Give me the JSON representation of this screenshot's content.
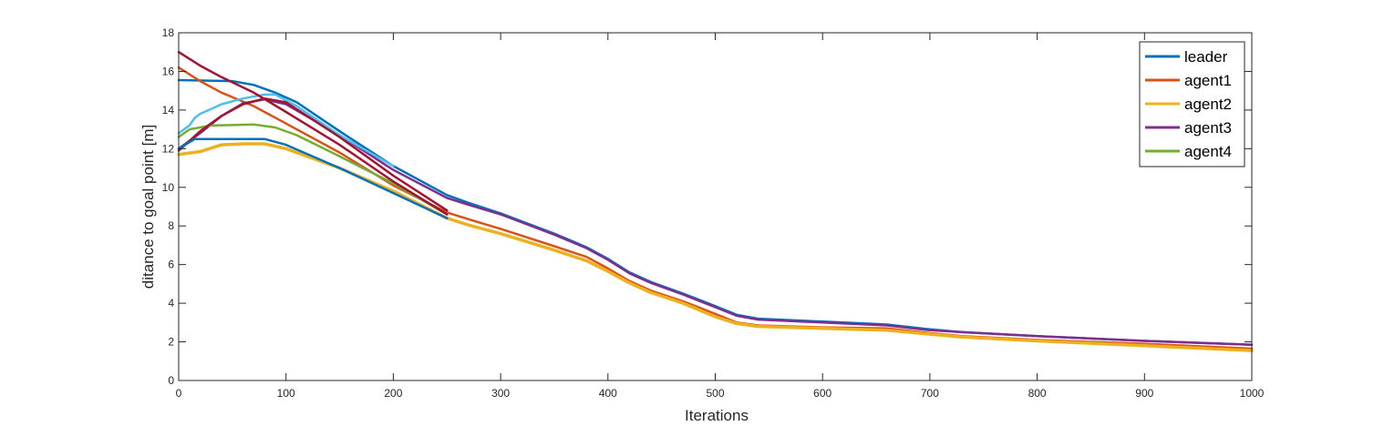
{
  "chart_data": {
    "type": "line",
    "title": "",
    "xlabel": "Iterations",
    "ylabel": "ditance to goal point [m]",
    "xlim": [
      0,
      1000
    ],
    "ylim": [
      0,
      18
    ],
    "xticks": [
      0,
      100,
      200,
      300,
      400,
      500,
      600,
      700,
      800,
      900,
      1000
    ],
    "yticks": [
      0,
      2,
      4,
      6,
      8,
      10,
      12,
      14,
      16,
      18
    ],
    "grid": false,
    "legend_position": "top-right",
    "legend": [
      "leader",
      "agent1",
      "agent2",
      "agent3",
      "agent4"
    ],
    "series": [
      {
        "name": "leader",
        "color": "#0072BD",
        "width": 2.5,
        "x": [
          0,
          50,
          70,
          90,
          110,
          150,
          200,
          250,
          270,
          300,
          350,
          380,
          400,
          420,
          440,
          470,
          500,
          520,
          540,
          600,
          660,
          700,
          730,
          800,
          900,
          1000
        ],
        "y": [
          15.55,
          15.5,
          15.3,
          14.9,
          14.4,
          12.9,
          11.1,
          9.6,
          9.2,
          8.65,
          7.6,
          6.9,
          6.3,
          5.6,
          5.1,
          4.5,
          3.85,
          3.4,
          3.2,
          3.05,
          2.9,
          2.65,
          2.5,
          2.3,
          2.05,
          1.85
        ]
      },
      {
        "name": "agent1",
        "color": "#D95319",
        "width": 2.5,
        "x": [
          0,
          20,
          40,
          70,
          100,
          150,
          200,
          250,
          270,
          300,
          350,
          380,
          400,
          420,
          440,
          470,
          500,
          520,
          540,
          600,
          660,
          700,
          730,
          800,
          900,
          1000
        ],
        "y": [
          16.2,
          15.5,
          14.9,
          14.2,
          13.3,
          11.8,
          10.1,
          8.7,
          8.35,
          7.85,
          6.95,
          6.4,
          5.8,
          5.15,
          4.65,
          4.1,
          3.45,
          3.0,
          2.85,
          2.75,
          2.7,
          2.45,
          2.3,
          2.1,
          1.9,
          1.65
        ]
      },
      {
        "name": "agent2",
        "color": "#EDB120",
        "width": 3.5,
        "x": [
          0,
          20,
          40,
          60,
          80,
          100,
          150,
          200,
          250,
          270,
          300,
          350,
          380,
          400,
          420,
          440,
          470,
          500,
          520,
          540,
          600,
          660,
          700,
          730,
          800,
          900,
          1000
        ],
        "y": [
          11.7,
          11.85,
          12.2,
          12.25,
          12.25,
          12.0,
          11.0,
          9.8,
          8.4,
          8.05,
          7.6,
          6.75,
          6.2,
          5.65,
          5.05,
          4.55,
          4.0,
          3.3,
          2.95,
          2.8,
          2.7,
          2.6,
          2.4,
          2.25,
          2.05,
          1.8,
          1.55
        ]
      },
      {
        "name": "agent3",
        "color": "#7E2F8E",
        "width": 2.5,
        "x": [
          0,
          20,
          40,
          60,
          80,
          100,
          150,
          200,
          250,
          270,
          300,
          350,
          380,
          400,
          420,
          440,
          470,
          500,
          520,
          540,
          600,
          660,
          700,
          730,
          800,
          900,
          1000
        ],
        "y": [
          12.0,
          12.8,
          13.7,
          14.35,
          14.55,
          14.3,
          12.7,
          10.9,
          9.45,
          9.1,
          8.6,
          7.55,
          6.85,
          6.25,
          5.55,
          5.05,
          4.45,
          3.8,
          3.35,
          3.15,
          3.0,
          2.85,
          2.6,
          2.5,
          2.3,
          2.05,
          1.85
        ]
      },
      {
        "name": "",
        "color": "#77AC30",
        "width": 2.5,
        "x": [
          0,
          10,
          30,
          70,
          90,
          110,
          150,
          200,
          250
        ],
        "y": [
          12.6,
          13.0,
          13.2,
          13.25,
          13.1,
          12.7,
          11.6,
          10.2,
          8.6
        ]
      },
      {
        "name": "",
        "color": "#4DBEEE",
        "width": 2.5,
        "x": [
          0,
          10,
          15,
          20,
          40,
          60,
          80,
          90,
          110,
          150,
          200
        ],
        "y": [
          12.8,
          13.2,
          13.6,
          13.8,
          14.3,
          14.6,
          14.8,
          14.8,
          14.2,
          12.7,
          11.1
        ]
      },
      {
        "name": "",
        "color": "#A2142F",
        "width": 2.5,
        "x": [
          0,
          20,
          40,
          70,
          100,
          150,
          200,
          250
        ],
        "y": [
          17.0,
          16.3,
          15.7,
          14.9,
          13.9,
          12.2,
          10.3,
          8.6
        ]
      },
      {
        "name": "",
        "color": "#A2142F",
        "width": 2.5,
        "x": [
          0,
          20,
          40,
          60,
          80,
          100,
          150,
          200,
          250
        ],
        "y": [
          11.9,
          12.9,
          13.7,
          14.3,
          14.6,
          14.4,
          12.6,
          10.6,
          8.8
        ]
      },
      {
        "name": "",
        "color": "#0072BD",
        "width": 2.5,
        "x": [
          0,
          15,
          30,
          50,
          80,
          100,
          150,
          200,
          250
        ],
        "y": [
          12.0,
          12.5,
          12.5,
          12.5,
          12.5,
          12.2,
          11.0,
          9.7,
          8.4
        ]
      }
    ]
  }
}
